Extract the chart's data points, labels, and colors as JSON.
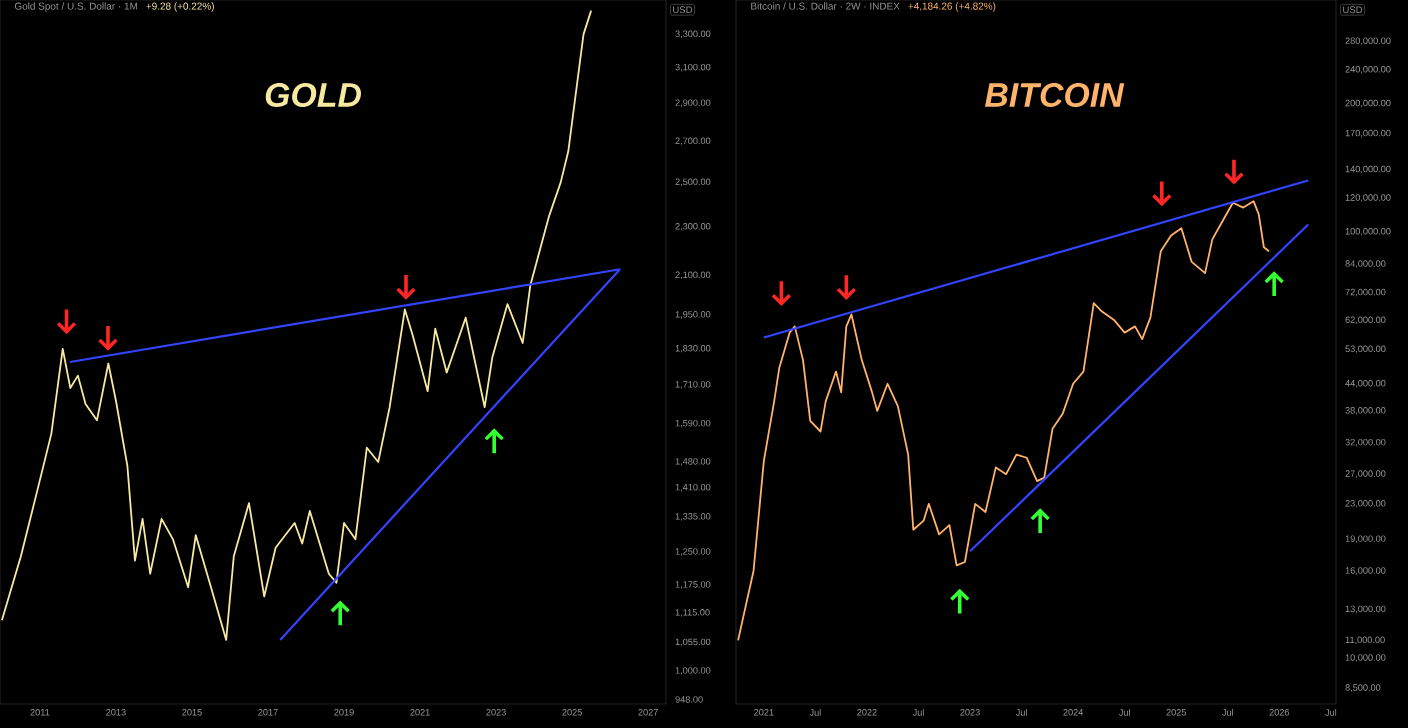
{
  "chart_data": [
    {
      "type": "line",
      "title": "GOLD",
      "subtitle": "Gold Spot / U.S. Dollar · 1M",
      "annotations": [
        "+9.28 (+0.22%)",
        "USD"
      ],
      "log": "y",
      "xlim": [
        2009.95,
        2027.47
      ],
      "ylim": [
        940,
        3520
      ],
      "xticks": [
        2011,
        2013,
        2015,
        2017,
        2019,
        2021,
        2023,
        2025,
        2027
      ],
      "yticks": [
        {
          "value": 3300,
          "label": "3,300.00"
        },
        {
          "value": 3100,
          "label": "3,100.00"
        },
        {
          "value": 2900,
          "label": "2,900.00"
        },
        {
          "value": 2700,
          "label": "2,700.00"
        },
        {
          "value": 2500,
          "label": "2,500.00"
        },
        {
          "value": 2300,
          "label": "2,300.00"
        },
        {
          "value": 2100,
          "label": "2,100.00"
        },
        {
          "value": 1950,
          "label": "1,950.00"
        },
        {
          "value": 1830,
          "label": "1,830.00"
        },
        {
          "value": 1710,
          "label": "1,710.00"
        },
        {
          "value": 1590,
          "label": "1,590.00"
        },
        {
          "value": 1480,
          "label": "1,480.00"
        },
        {
          "value": 1410,
          "label": "1,410.00"
        },
        {
          "value": 1335,
          "label": "1,335.00"
        },
        {
          "value": 1250,
          "label": "1,250.00"
        },
        {
          "value": 1175,
          "label": "1,175.00"
        },
        {
          "value": 1115,
          "label": "1,115.00"
        },
        {
          "value": 1055,
          "label": "1,055.00"
        },
        {
          "value": 1000,
          "label": "1,000.00"
        },
        {
          "value": 948,
          "label": "948.00"
        }
      ],
      "x": [
        2010.0,
        2010.5,
        2010.9,
        2011.3,
        2011.6,
        2011.8,
        2012.0,
        2012.2,
        2012.5,
        2012.8,
        2013.0,
        2013.3,
        2013.5,
        2013.7,
        2013.9,
        2014.2,
        2014.5,
        2014.9,
        2015.1,
        2015.5,
        2015.9,
        2016.1,
        2016.5,
        2016.9,
        2017.2,
        2017.7,
        2017.9,
        2018.1,
        2018.6,
        2018.8,
        2019.0,
        2019.3,
        2019.6,
        2019.9,
        2020.2,
        2020.6,
        2020.8,
        2021.2,
        2021.4,
        2021.7,
        2022.2,
        2022.7,
        2022.9,
        2023.3,
        2023.7,
        2023.9,
        2024.2,
        2024.4,
        2024.7,
        2024.9,
        2025.0,
        2025.3,
        2025.5
      ],
      "series": [
        {
          "color": "#f7eaa0",
          "values": [
            1100,
            1240,
            1390,
            1560,
            1830,
            1700,
            1740,
            1650,
            1600,
            1780,
            1660,
            1470,
            1230,
            1330,
            1200,
            1330,
            1280,
            1170,
            1290,
            1170,
            1060,
            1240,
            1370,
            1150,
            1260,
            1320,
            1270,
            1350,
            1200,
            1180,
            1320,
            1280,
            1520,
            1480,
            1640,
            1970,
            1880,
            1690,
            1900,
            1750,
            1940,
            1640,
            1800,
            1990,
            1850,
            2060,
            2230,
            2350,
            2500,
            2650,
            2800,
            3300,
            3450
          ]
        },
        {
          "color": "#3344ff",
          "x": [
            2011.79,
            2026.26
          ],
          "values": [
            1785,
            2124
          ]
        },
        {
          "color": "#3344ff",
          "x": [
            2017.32,
            2026.26
          ],
          "values": [
            1060,
            2124
          ]
        }
      ]
    },
    {
      "type": "line",
      "title": "BITCOIN",
      "subtitle": "Bitcoin / U.S. Dollar · 2W · INDEX",
      "annotations": [
        "+4,184.26 (+4.82%)",
        "USD"
      ],
      "log": "y",
      "xlim": [
        2020.73,
        2026.55
      ],
      "ylim": [
        7800,
        350000
      ],
      "xticks": [
        2021,
        {
          "value": 2021.5,
          "label": "Jul"
        },
        2022,
        {
          "value": 2022.5,
          "label": "Jul"
        },
        2023,
        {
          "value": 2023.5,
          "label": "Jul"
        },
        2024,
        {
          "value": 2024.5,
          "label": "Jul"
        },
        2025,
        {
          "value": 2025.5,
          "label": "Jul"
        },
        2026,
        {
          "value": 2026.5,
          "label": "Jul"
        }
      ],
      "yticks": [
        {
          "value": 280000,
          "label": "280,000.00"
        },
        {
          "value": 240000,
          "label": "240,000.00"
        },
        {
          "value": 200000,
          "label": "200,000.00"
        },
        {
          "value": 170000,
          "label": "170,000.00"
        },
        {
          "value": 140000,
          "label": "140,000.00"
        },
        {
          "value": 120000,
          "label": "120,000.00"
        },
        {
          "value": 100000,
          "label": "100,000.00"
        },
        {
          "value": 84000,
          "label": "84,000.00"
        },
        {
          "value": 72000,
          "label": "72,000.00"
        },
        {
          "value": 62000,
          "label": "62,000.00"
        },
        {
          "value": 53000,
          "label": "53,000.00"
        },
        {
          "value": 44000,
          "label": "44,000.00"
        },
        {
          "value": 38000,
          "label": "38,000.00"
        },
        {
          "value": 32000,
          "label": "32,000.00"
        },
        {
          "value": 27000,
          "label": "27,000.00"
        },
        {
          "value": 23000,
          "label": "23,000.00"
        },
        {
          "value": 19000,
          "label": "19,000.00"
        },
        {
          "value": 16000,
          "label": "16,000.00"
        },
        {
          "value": 13000,
          "label": "13,000.00"
        },
        {
          "value": 11000,
          "label": "11,000.00"
        },
        {
          "value": 10000,
          "label": "10,000.00"
        },
        {
          "value": 8500,
          "label": "8,500.00"
        }
      ],
      "x": [
        2020.75,
        2020.9,
        2021.0,
        2021.1,
        2021.15,
        2021.25,
        2021.3,
        2021.38,
        2021.45,
        2021.55,
        2021.6,
        2021.7,
        2021.75,
        2021.8,
        2021.85,
        2021.95,
        2022.05,
        2022.1,
        2022.2,
        2022.3,
        2022.4,
        2022.45,
        2022.55,
        2022.6,
        2022.7,
        2022.8,
        2022.87,
        2022.95,
        2023.05,
        2023.15,
        2023.25,
        2023.35,
        2023.45,
        2023.55,
        2023.65,
        2023.72,
        2023.8,
        2023.9,
        2024.0,
        2024.1,
        2024.2,
        2024.28,
        2024.4,
        2024.5,
        2024.6,
        2024.67,
        2024.75,
        2024.85,
        2024.95,
        2025.05,
        2025.15,
        2025.28,
        2025.35,
        2025.45,
        2025.55,
        2025.65,
        2025.75,
        2025.8,
        2025.85,
        2025.9
      ],
      "series": [
        {
          "color": "#ffb36b",
          "values": [
            11000,
            16000,
            29000,
            40000,
            48000,
            58000,
            60000,
            50000,
            36000,
            34000,
            40000,
            47000,
            42000,
            60000,
            64000,
            50000,
            42000,
            38000,
            44000,
            39000,
            30000,
            20000,
            21000,
            23000,
            19500,
            20500,
            16500,
            16800,
            23000,
            22000,
            28000,
            27000,
            30000,
            29500,
            26000,
            26500,
            34500,
            37500,
            44000,
            47000,
            68000,
            65000,
            62000,
            58000,
            60000,
            56000,
            63000,
            90000,
            98000,
            102000,
            85000,
            80000,
            96000,
            106000,
            117000,
            114000,
            118000,
            110000,
            92000,
            90000
          ]
        },
        {
          "color": "#3344ff",
          "x": [
            2021.0,
            2026.28
          ],
          "values": [
            56500,
            132000
          ]
        },
        {
          "color": "#3344ff",
          "x": [
            2023.0,
            2026.28
          ],
          "values": [
            17800,
            104000
          ]
        }
      ]
    }
  ]
}
